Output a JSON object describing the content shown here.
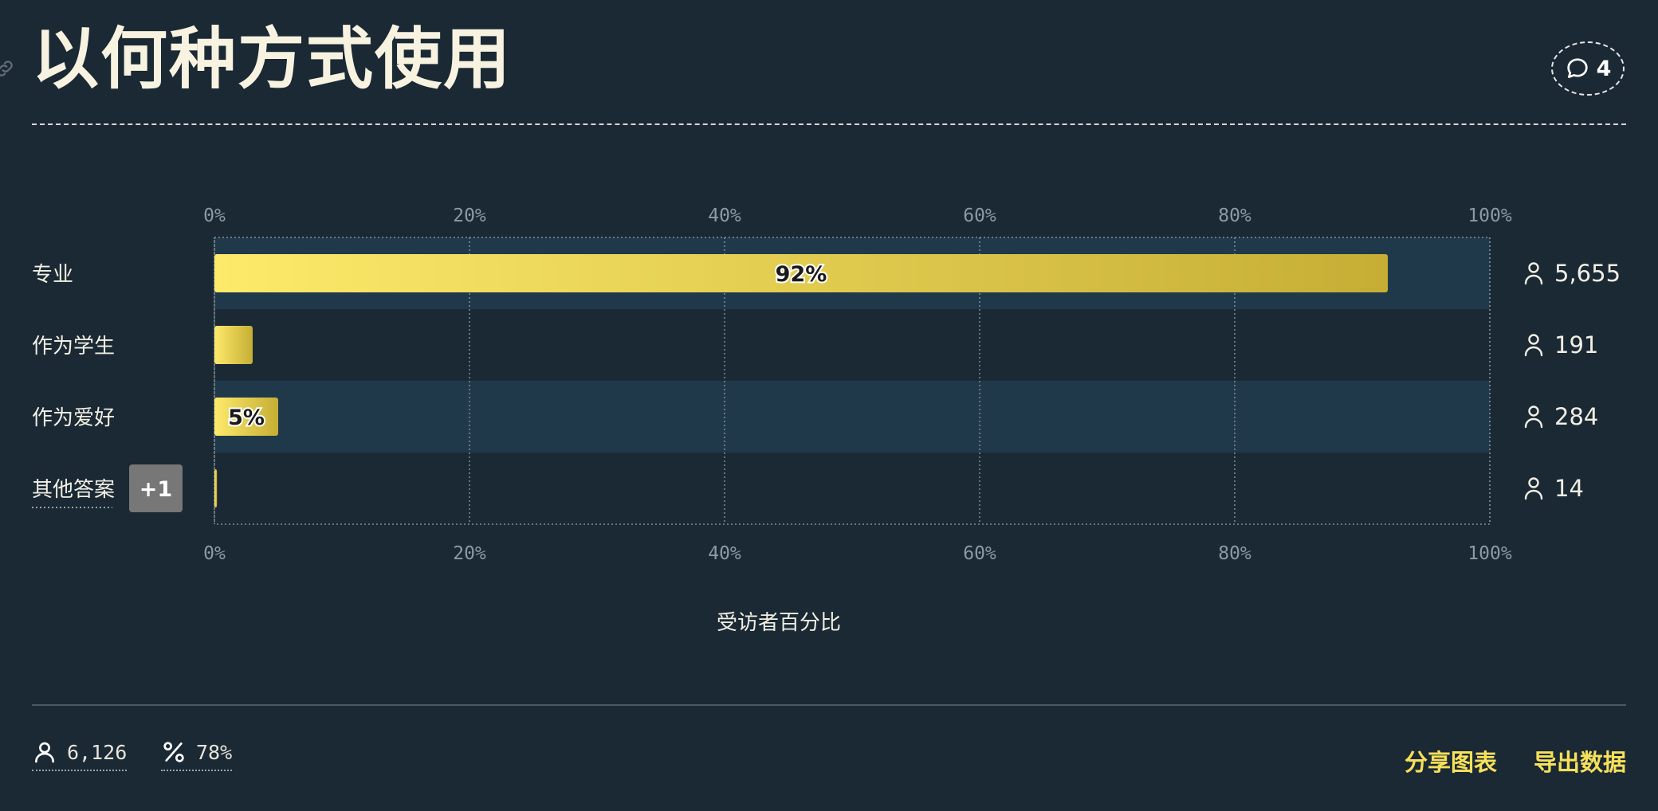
{
  "page": {
    "title": "以何种方式使用",
    "comment_count": "4"
  },
  "chart_data": {
    "type": "bar",
    "orientation": "horizontal",
    "xlabel": "受访者百分比",
    "xlim": [
      0,
      100
    ],
    "ticks": [
      "0%",
      "20%",
      "40%",
      "60%",
      "80%",
      "100%"
    ],
    "grid": true,
    "categories": [
      "专业",
      "作为学生",
      "作为爱好",
      "其他答案"
    ],
    "values": [
      92,
      3,
      5,
      0.2
    ],
    "bar_labels": [
      "92%",
      "",
      "5%",
      ""
    ],
    "counts": [
      "5,655",
      "191",
      "284",
      "14"
    ],
    "other_more_badge": "+1",
    "colors": {
      "bar_start": "#fdea6b",
      "bar_end": "#c6ae35",
      "band": "#20394a"
    }
  },
  "footer": {
    "respondents": "6,126",
    "percent": "78%",
    "share_label": "分享图表",
    "export_label": "导出数据"
  }
}
